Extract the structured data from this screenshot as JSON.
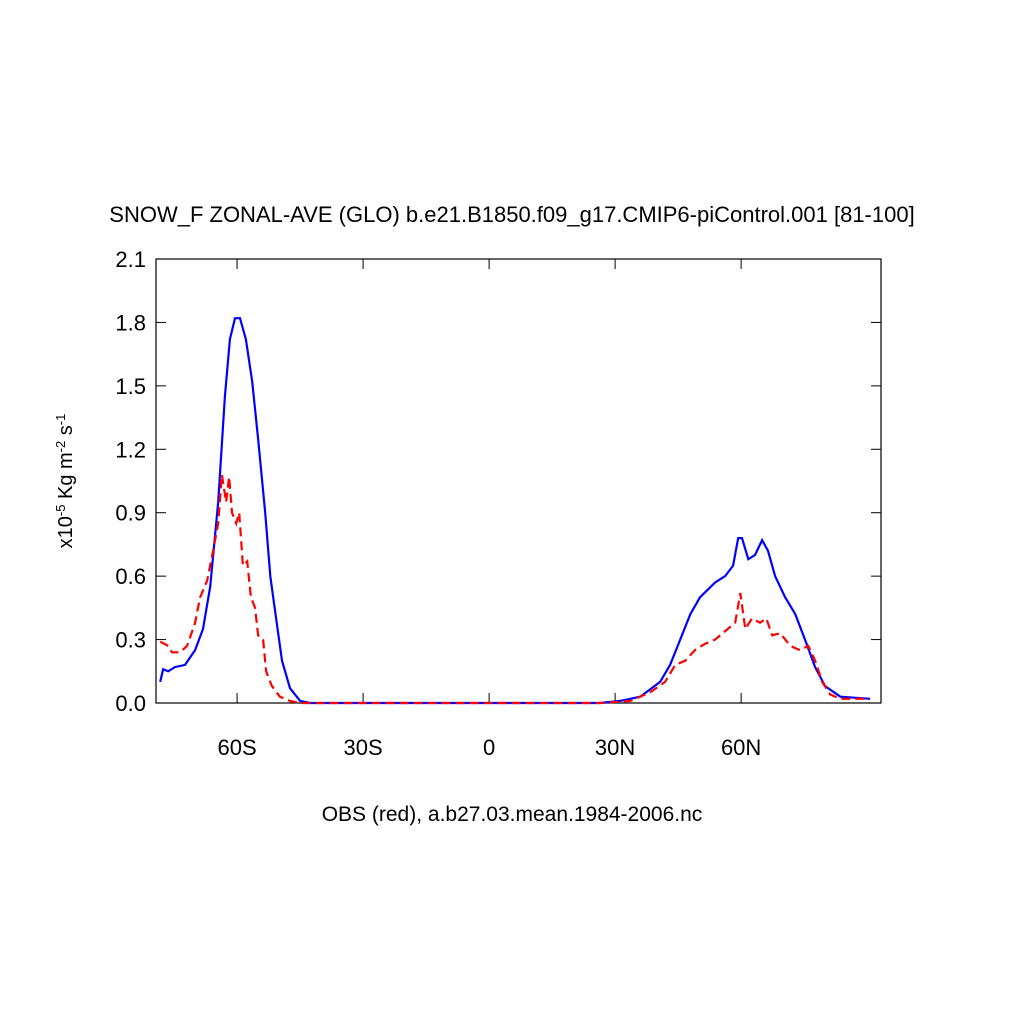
{
  "chart_data": {
    "type": "line",
    "title": "SNOW_F ZONAL-AVE (GLO) b.e21.B1850.f09_g17.CMIP6-piControl.001 [81-100]",
    "x_label": "OBS (red), a.b27.03.mean.1984-2006.nc",
    "y_label_parts": [
      {
        "text": "x10"
      },
      {
        "text": "-5",
        "sup": true
      },
      {
        "text": " Kg m"
      },
      {
        "text": "-2",
        "sup": true
      },
      {
        "text": " s"
      },
      {
        "text": "-1",
        "sup": true
      }
    ],
    "xlim": [
      -79.3,
      93.3
    ],
    "xticks": [
      {
        "value": -60,
        "label": "60S"
      },
      {
        "value": -30,
        "label": "30S"
      },
      0,
      {
        "value": 30,
        "label": "30N"
      },
      {
        "value": 60,
        "label": "60N"
      }
    ],
    "ylim": [
      0,
      2.1
    ],
    "yticks": [
      {
        "value": 0,
        "label": "0.0"
      },
      0.3,
      0.6,
      0.9,
      1.2,
      1.5,
      1.8,
      2.1
    ],
    "series": [
      {
        "color": "#0000ff",
        "dash": false,
        "x": [
          -78.3,
          -77.6,
          -76.4,
          -74.8,
          -72.4,
          -70.0,
          -68.1,
          -66.4,
          -64.5,
          -62.9,
          -61.7,
          -60.5,
          -59.3,
          -57.9,
          -56.4,
          -55.0,
          -53.3,
          -52.1,
          -50.7,
          -49.3,
          -47.4,
          -45.0,
          -42.6,
          26.4,
          31.2,
          36.0,
          40.7,
          43.1,
          45.5,
          47.9,
          50.2,
          53.8,
          56.2,
          58.1,
          59.3,
          60.2,
          61.7,
          63.3,
          65.0,
          66.4,
          68.1,
          70.5,
          72.9,
          75.2,
          77.6,
          80.0,
          83.6,
          90.7
        ],
        "values": [
          0.1,
          0.16,
          0.15,
          0.17,
          0.18,
          0.25,
          0.35,
          0.55,
          0.95,
          1.45,
          1.72,
          1.82,
          1.82,
          1.72,
          1.52,
          1.25,
          0.9,
          0.6,
          0.4,
          0.2,
          0.07,
          0.01,
          0,
          0,
          0.01,
          0.03,
          0.1,
          0.18,
          0.3,
          0.42,
          0.5,
          0.57,
          0.6,
          0.65,
          0.78,
          0.78,
          0.68,
          0.7,
          0.77,
          0.72,
          0.6,
          0.5,
          0.42,
          0.3,
          0.17,
          0.08,
          0.03,
          0.02
        ]
      },
      {
        "color": "#ff0000",
        "dash": true,
        "x": [
          -78.3,
          -76.4,
          -75.5,
          -73.6,
          -71.9,
          -70.0,
          -68.8,
          -67.1,
          -65.7,
          -64.5,
          -63.6,
          -62.6,
          -61.9,
          -61.2,
          -60.2,
          -59.5,
          -58.6,
          -57.6,
          -56.7,
          -55.7,
          -55.0,
          -53.8,
          -53.1,
          -51.7,
          -49.8,
          -47.4,
          -45.0,
          26.4,
          33.6,
          38.3,
          41.9,
          44.3,
          46.7,
          49.0,
          51.4,
          53.8,
          56.2,
          58.6,
          59.8,
          61.0,
          62.6,
          64.5,
          66.0,
          67.4,
          69.3,
          71.7,
          74.0,
          76.0,
          77.6,
          79.3,
          81.2,
          83.6,
          90.2
        ],
        "values": [
          0.29,
          0.27,
          0.24,
          0.24,
          0.27,
          0.38,
          0.5,
          0.58,
          0.72,
          0.85,
          1.08,
          0.95,
          1.07,
          0.9,
          0.85,
          0.9,
          0.65,
          0.67,
          0.5,
          0.45,
          0.32,
          0.3,
          0.15,
          0.08,
          0.03,
          0.01,
          0,
          0,
          0.01,
          0.05,
          0.1,
          0.18,
          0.2,
          0.25,
          0.28,
          0.3,
          0.34,
          0.38,
          0.52,
          0.35,
          0.4,
          0.38,
          0.4,
          0.32,
          0.33,
          0.27,
          0.25,
          0.27,
          0.2,
          0.1,
          0.04,
          0.02,
          0.02
        ]
      }
    ]
  }
}
